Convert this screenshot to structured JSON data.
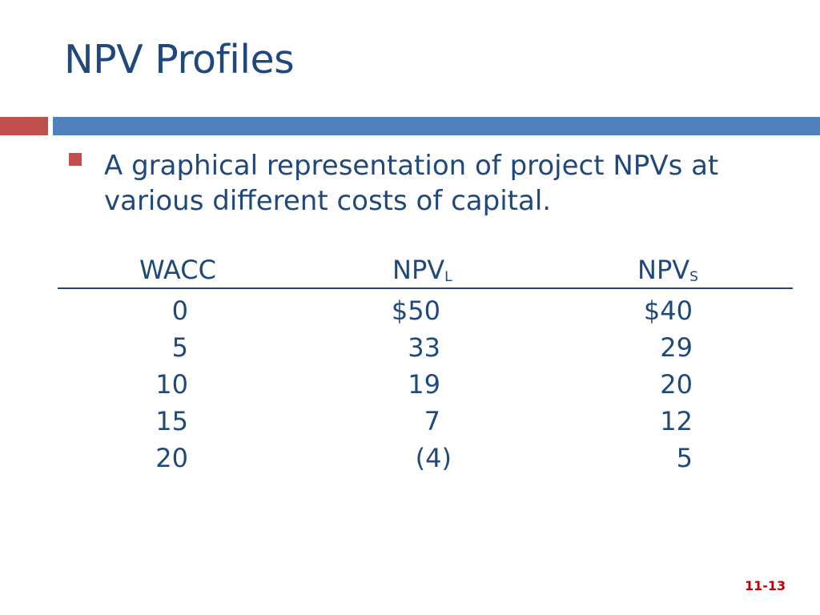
{
  "slide": {
    "title": "NPV Profiles",
    "bullet": "A graphical representation of project NPVs at various different costs of capital.",
    "number": "11-13"
  },
  "table": {
    "headers": {
      "wacc": "WACC",
      "npv_l_main": "NPV",
      "npv_l_sub": "L",
      "npv_s_main": "NPV",
      "npv_s_sub": "S"
    },
    "rows": [
      {
        "wacc": "0",
        "npv_l": "$50",
        "npv_s": "$40"
      },
      {
        "wacc": "5",
        "npv_l": "33",
        "npv_s": "29"
      },
      {
        "wacc": "10",
        "npv_l": "19",
        "npv_s": "20"
      },
      {
        "wacc": "15",
        "npv_l": "7",
        "npv_s": "12"
      },
      {
        "wacc": "20",
        "npv_l": "(4)",
        "npv_s": "5"
      }
    ]
  },
  "colors": {
    "title": "#1f497d",
    "accent_red": "#c0504d",
    "accent_blue": "#4f81bd",
    "slide_number": "#c00000"
  }
}
